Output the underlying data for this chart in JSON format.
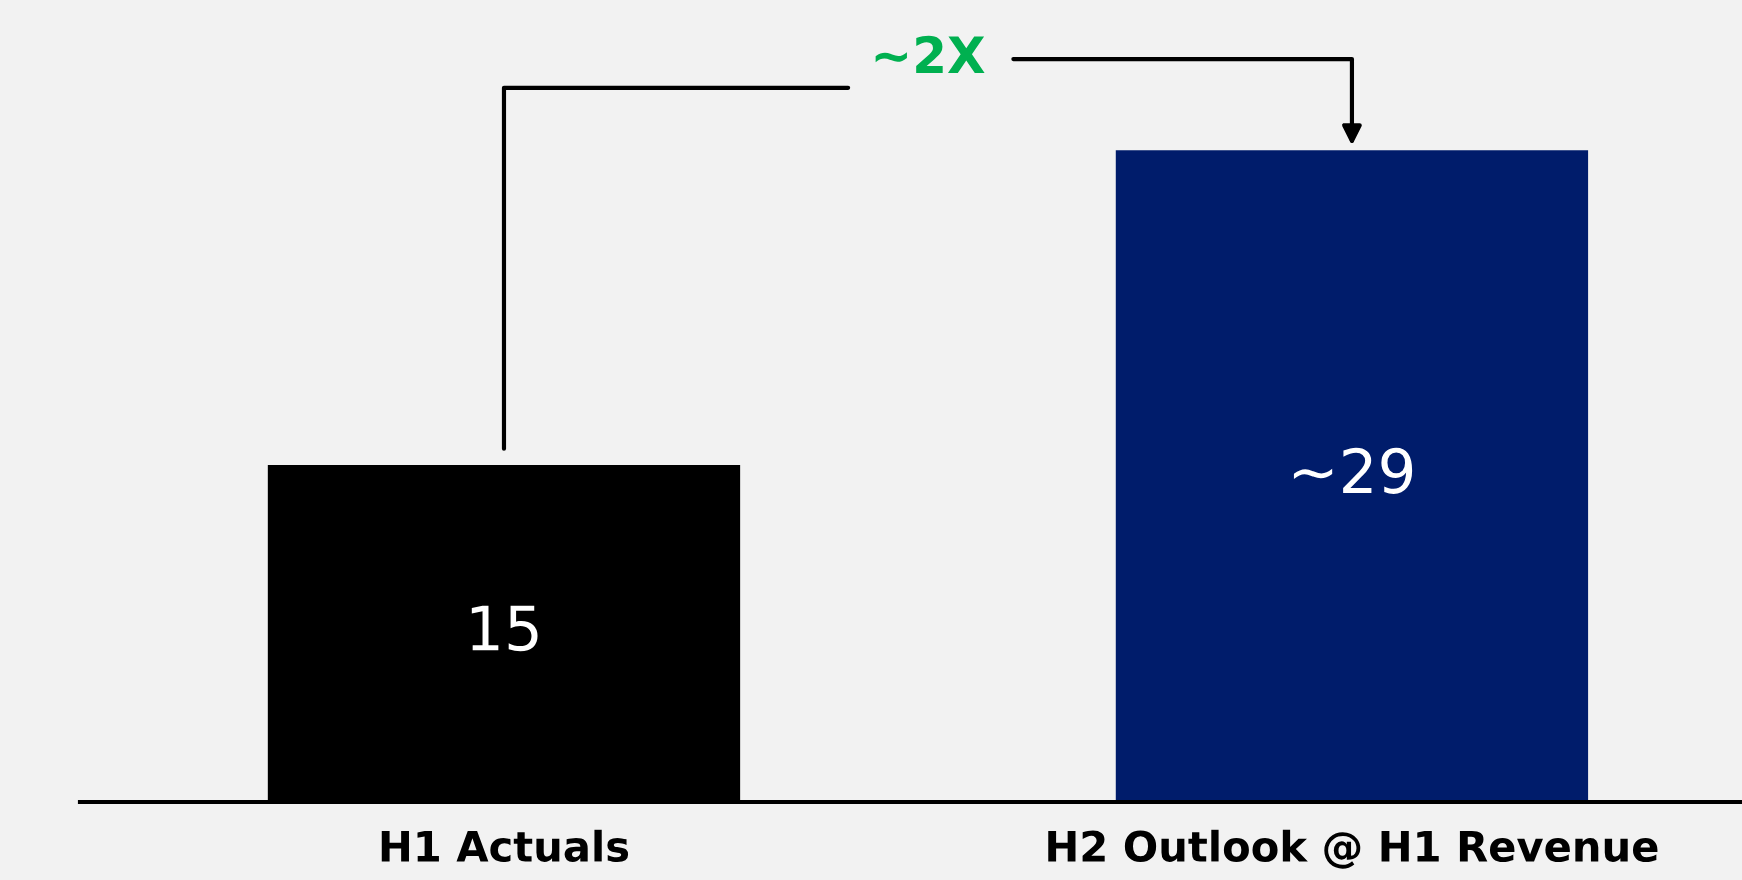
{
  "chart_data": {
    "type": "bar",
    "categories": [
      "H1 Actuals",
      "H2 Outlook @ H1 Revenue"
    ],
    "values": [
      15,
      29
    ],
    "colors": [
      "#000000",
      "#001c6b"
    ],
    "value_labels": [
      "15",
      "~29"
    ],
    "annotations": [
      "~2X"
    ],
    "grid": false,
    "legend": false
  }
}
